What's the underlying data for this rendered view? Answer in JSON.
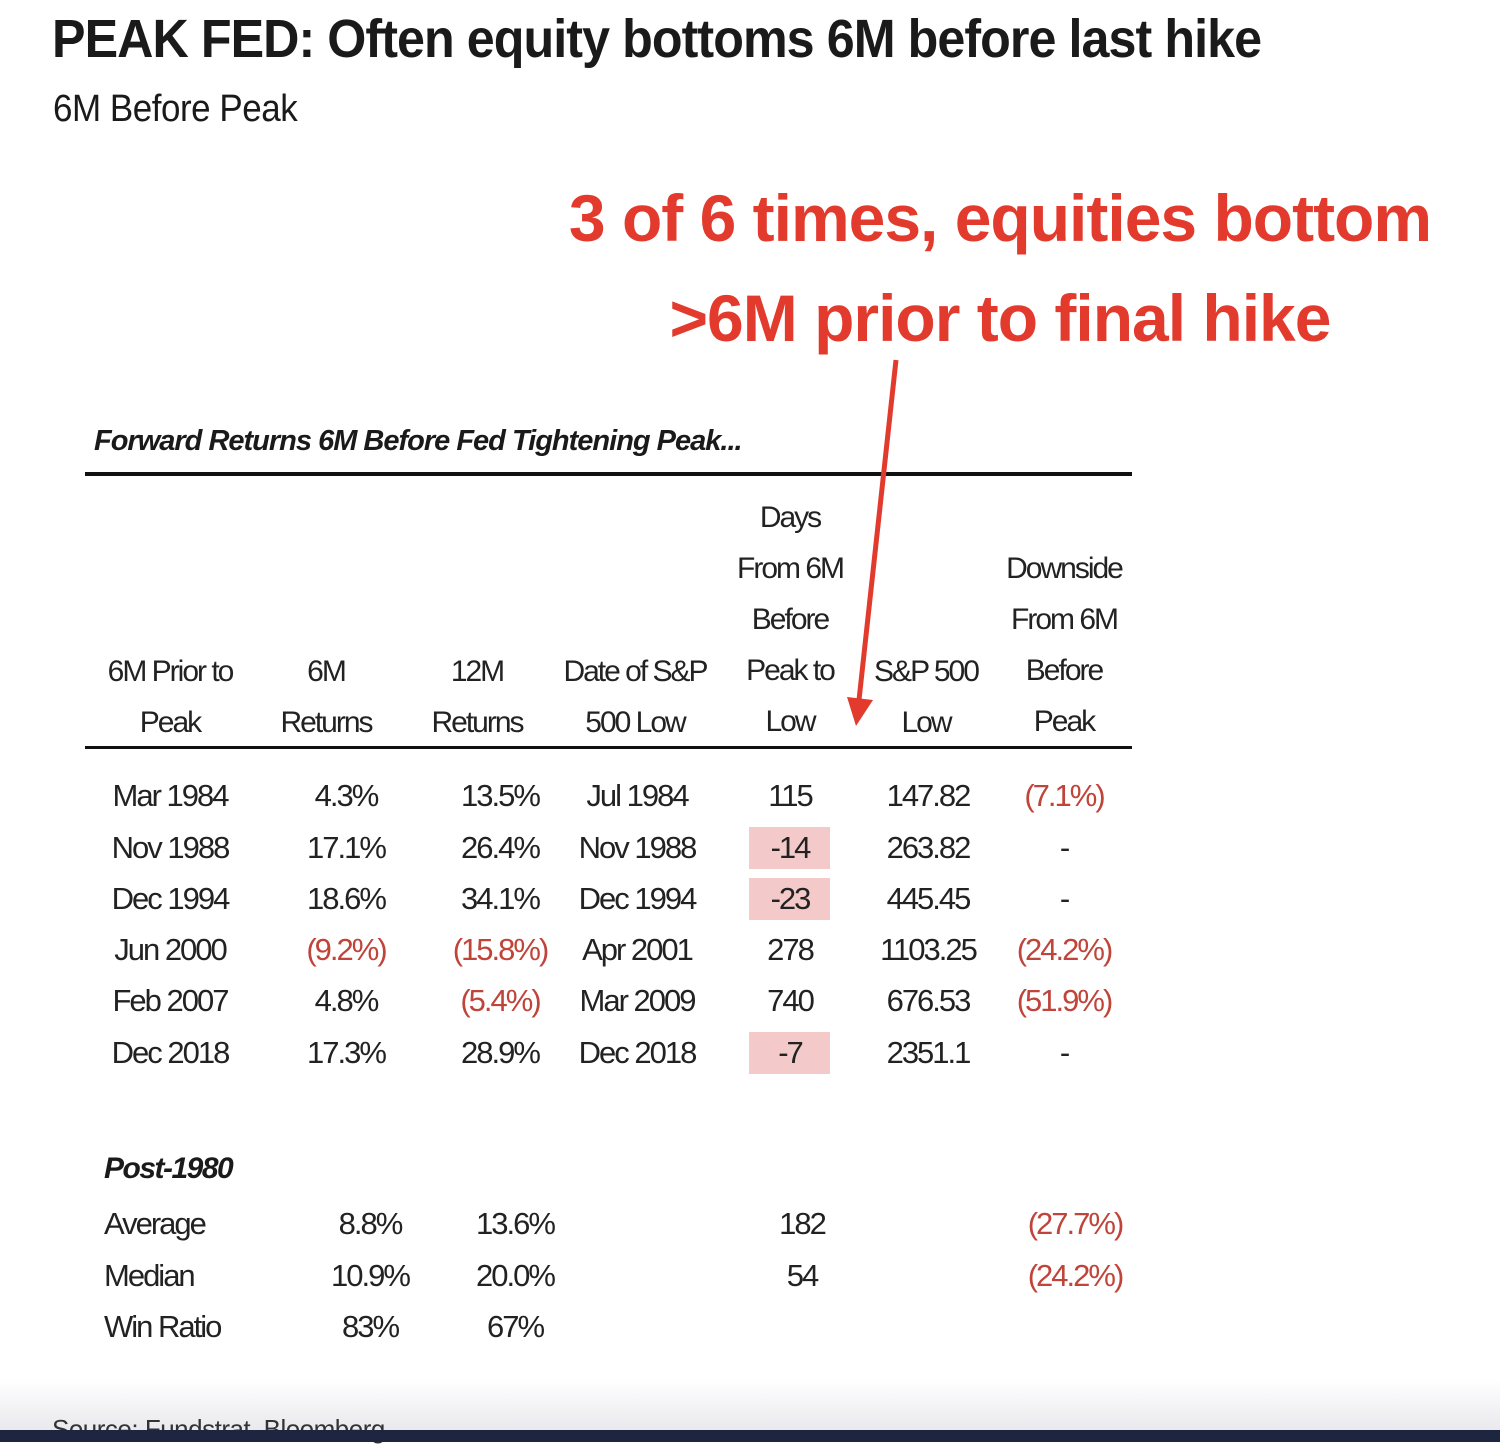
{
  "title": "PEAK FED: Often equity bottoms 6M before last hike",
  "subtitle": "6M Before Peak",
  "callout": {
    "line1": "3 of 6 times, equities bottom",
    "line2": ">6M prior to final hike",
    "color": "#e23b2e"
  },
  "table_title": "Forward Returns 6M Before Fed Tightening Peak...",
  "columns": [
    {
      "lines": [
        "6M Prior to",
        "Peak"
      ]
    },
    {
      "lines": [
        "6M",
        "Returns"
      ]
    },
    {
      "lines": [
        "12M",
        "Returns"
      ]
    },
    {
      "lines": [
        "Date of S&P",
        "500  Low"
      ]
    },
    {
      "lines": [
        "Days",
        "From 6M",
        "Before",
        "Peak to",
        "Low"
      ]
    },
    {
      "lines": [
        "S&P 500",
        "Low"
      ]
    },
    {
      "lines": [
        "Downside",
        "From 6M",
        "Before",
        "Peak"
      ]
    }
  ],
  "rows": [
    {
      "period": "Mar 1984",
      "ret6m": "4.3%",
      "ret12m": "13.5%",
      "low_date": "Jul 1984",
      "days": "115",
      "low": "147.82",
      "downside": "(7.1%)",
      "highlight_days": false
    },
    {
      "period": "Nov 1988",
      "ret6m": "17.1%",
      "ret12m": "26.4%",
      "low_date": "Nov 1988",
      "days": "-14",
      "low": "263.82",
      "downside": "-",
      "highlight_days": true
    },
    {
      "period": "Dec 1994",
      "ret6m": "18.6%",
      "ret12m": "34.1%",
      "low_date": "Dec 1994",
      "days": "-23",
      "low": "445.45",
      "downside": "-",
      "highlight_days": true
    },
    {
      "period": "Jun 2000",
      "ret6m": "(9.2%)",
      "ret12m": "(15.8%)",
      "low_date": "Apr 2001",
      "days": "278",
      "low": "1103.25",
      "downside": "(24.2%)",
      "highlight_days": false
    },
    {
      "period": "Feb 2007",
      "ret6m": "4.8%",
      "ret12m": "(5.4%)",
      "low_date": "Mar 2009",
      "days": "740",
      "low": "676.53",
      "downside": "(51.9%)",
      "highlight_days": false
    },
    {
      "period": "Dec 2018",
      "ret6m": "17.3%",
      "ret12m": "28.9%",
      "low_date": "Dec 2018",
      "days": "-7",
      "low": "2351.1",
      "downside": "-",
      "highlight_days": true
    }
  ],
  "summary_label": "Post-1980",
  "summary": [
    {
      "label": "Average",
      "ret6m": "8.8%",
      "ret12m": "13.6%",
      "days": "182",
      "downside": "(27.7%)"
    },
    {
      "label": "Median",
      "ret6m": "10.9%",
      "ret12m": "20.0%",
      "days": "54",
      "downside": "(24.2%)"
    },
    {
      "label": "Win Ratio",
      "ret6m": "83%",
      "ret12m": "67%",
      "days": "",
      "downside": ""
    }
  ],
  "source": "Source: Fundstrat, Bloomberg",
  "colors": {
    "negative": "#c0443a",
    "highlight": "#f4c9c9",
    "arrow": "#e23b2e"
  },
  "chart_data": {
    "type": "table",
    "title": "Forward Returns 6M Before Fed Tightening Peak...",
    "columns": [
      "6M Prior to Peak",
      "6M Returns",
      "12M Returns",
      "Date of S&P 500 Low",
      "Days From 6M Before Peak to Low",
      "S&P 500 Low",
      "Downside From 6M Before Peak"
    ],
    "rows": [
      [
        "Mar 1984",
        4.3,
        13.5,
        "Jul 1984",
        115,
        147.82,
        -7.1
      ],
      [
        "Nov 1988",
        17.1,
        26.4,
        "Nov 1988",
        -14,
        263.82,
        null
      ],
      [
        "Dec 1994",
        18.6,
        34.1,
        "Dec 1994",
        -23,
        445.45,
        null
      ],
      [
        "Jun 2000",
        -9.2,
        -15.8,
        "Apr 2001",
        278,
        1103.25,
        -24.2
      ],
      [
        "Feb 2007",
        4.8,
        -5.4,
        "Mar 2009",
        740,
        676.53,
        -51.9
      ],
      [
        "Dec 2018",
        17.3,
        28.9,
        "Dec 2018",
        -7,
        2351.1,
        null
      ]
    ],
    "summary": {
      "Average": [
        8.8,
        13.6,
        182,
        -27.7
      ],
      "Median": [
        10.9,
        20.0,
        54,
        -24.2
      ],
      "Win Ratio": [
        83,
        67
      ]
    }
  }
}
